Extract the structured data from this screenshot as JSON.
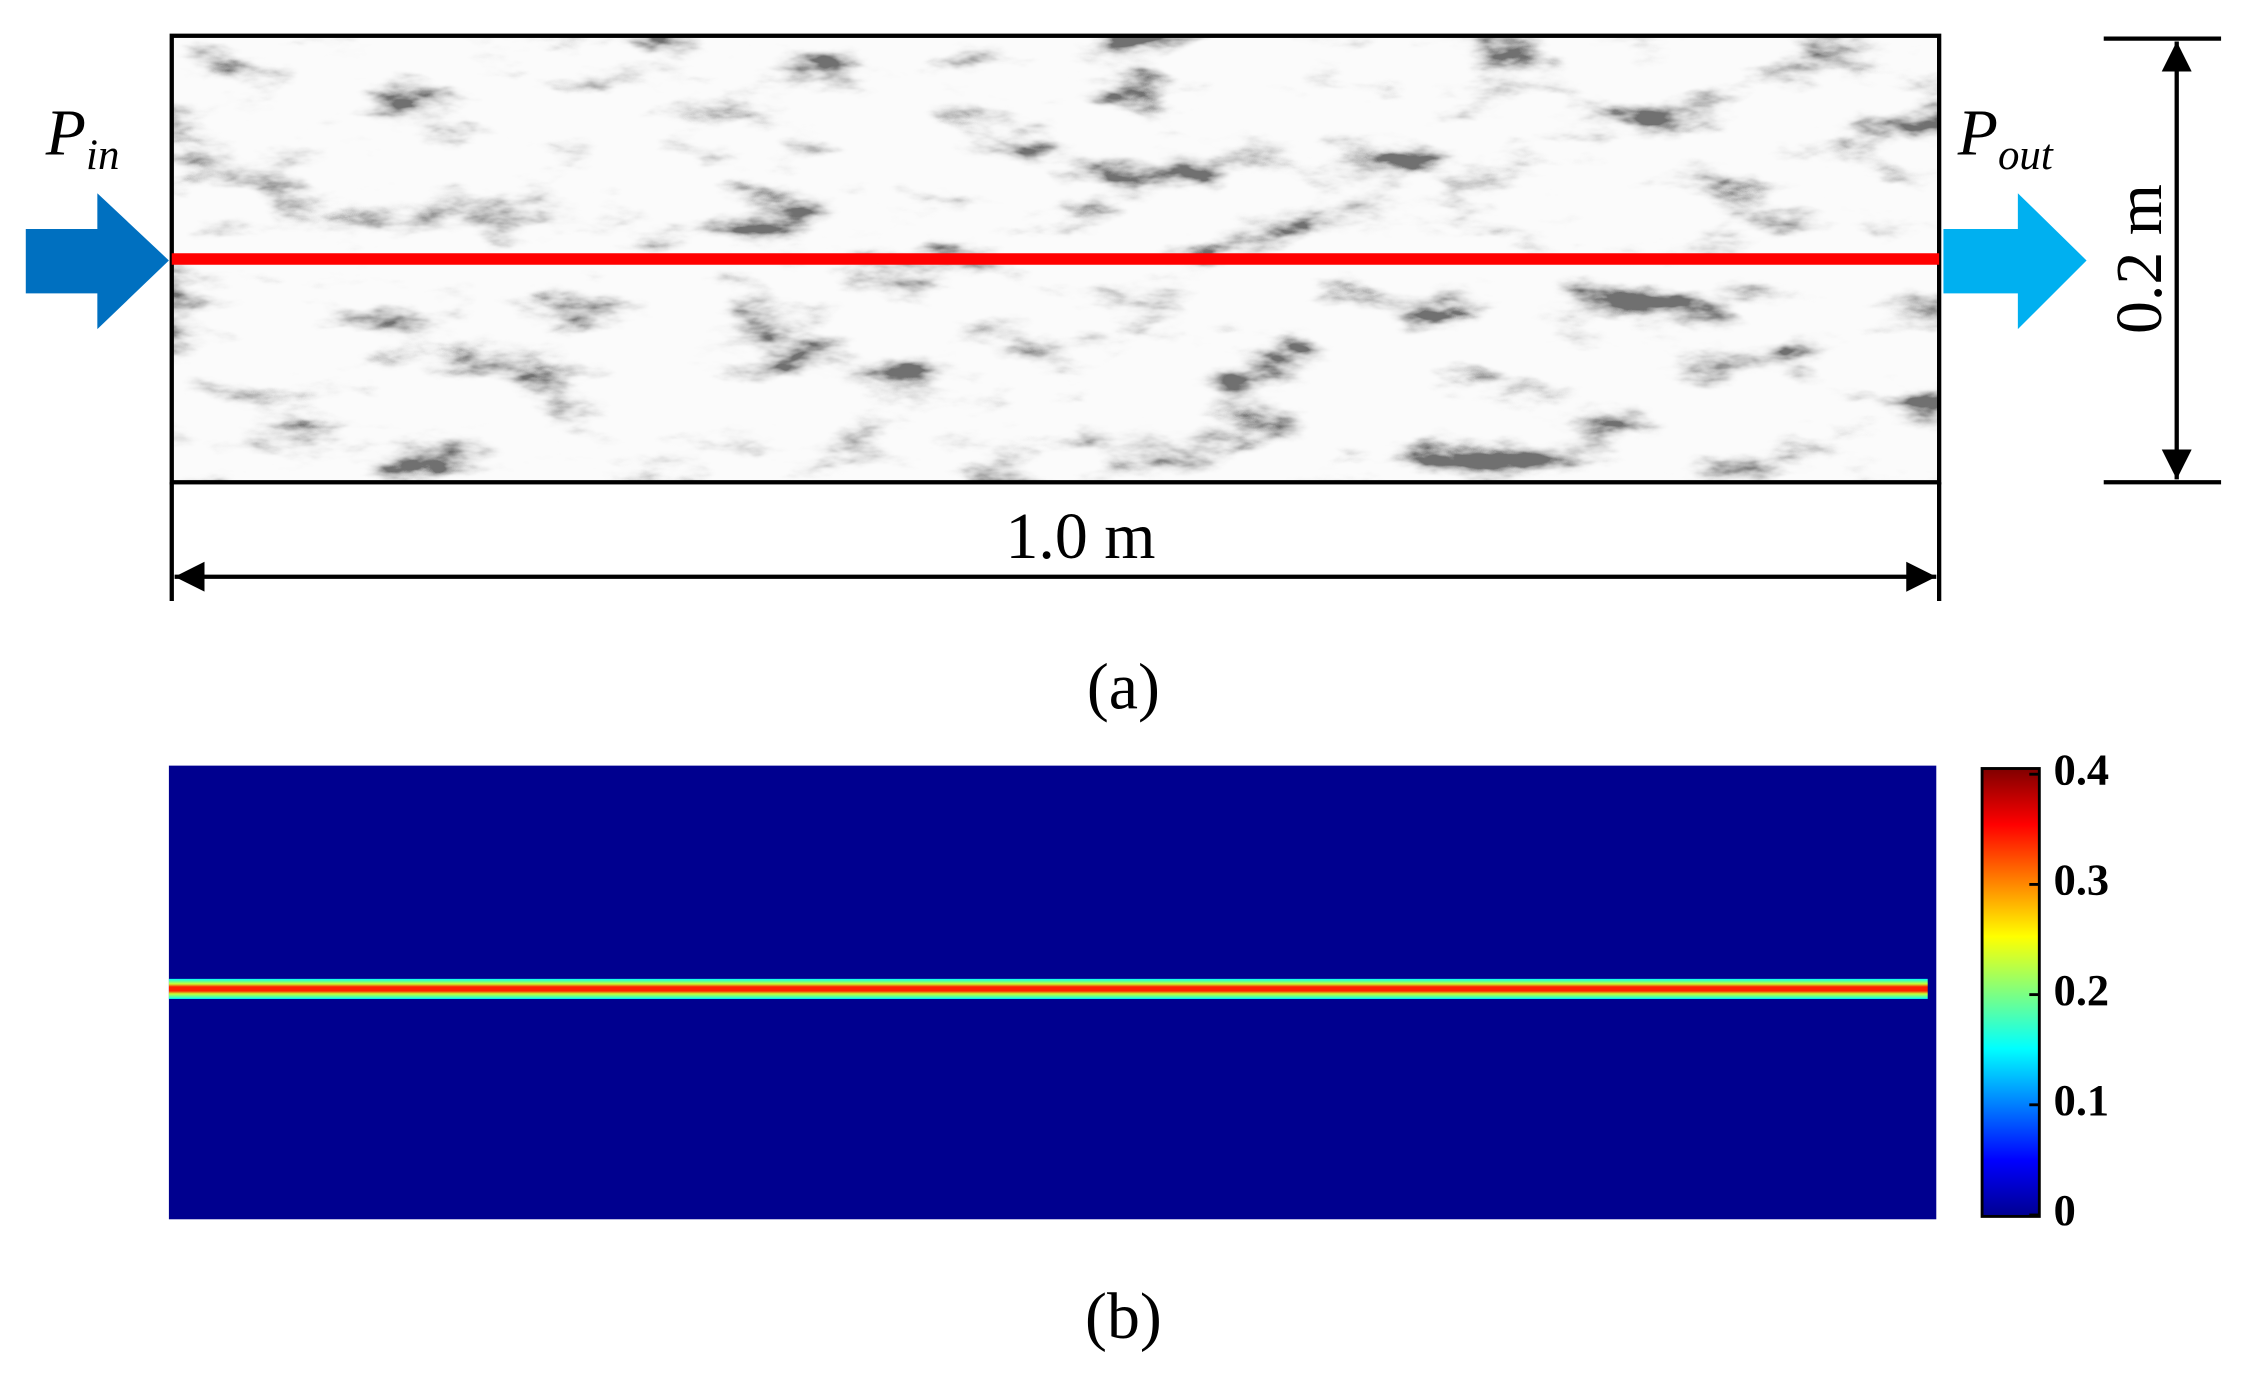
{
  "panel_a": {
    "inlet": {
      "symbol": "P",
      "subscript": "in"
    },
    "outlet": {
      "symbol": "P",
      "subscript": "out"
    },
    "height_label": "0.2 m",
    "length_label": "1.0 m",
    "caption": "(a)"
  },
  "panel_b": {
    "colorbar": {
      "lim": [
        0,
        0.4
      ],
      "ticks": [
        0,
        0.1,
        0.2,
        0.3,
        0.4
      ]
    },
    "caption": "(b)"
  }
}
